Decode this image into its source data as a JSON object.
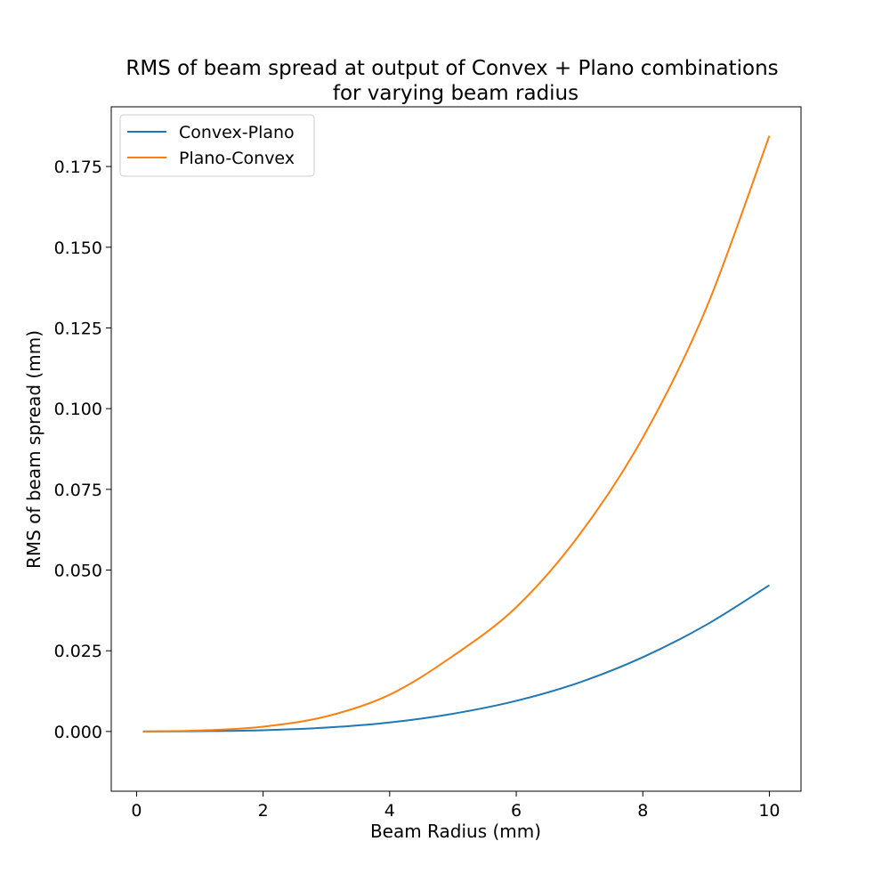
{
  "chart_data": {
    "type": "line",
    "title": "RMS of beam spread at output of Convex + Plano combinations",
    "subtitle": "for varying beam radius",
    "xlabel": "Beam Radius (mm)",
    "ylabel": "RMS of beam spread (mm)",
    "xlim": [
      -0.4,
      10.5
    ],
    "ylim": [
      -0.0185,
      0.1935
    ],
    "xticks": [
      0,
      2,
      4,
      6,
      8,
      10
    ],
    "xtick_labels": [
      "0",
      "2",
      "4",
      "6",
      "8",
      "10"
    ],
    "yticks": [
      0.0,
      0.025,
      0.05,
      0.075,
      0.1,
      0.125,
      0.15,
      0.175
    ],
    "ytick_labels": [
      "0.000",
      "0.025",
      "0.050",
      "0.075",
      "0.100",
      "0.125",
      "0.150",
      "0.175"
    ],
    "grid": false,
    "legend_position": "top-left",
    "series": [
      {
        "name": "Convex-Plano",
        "color": "#1f77b4",
        "x": [
          0.1,
          1,
          2,
          3,
          4,
          5,
          6,
          7,
          8,
          9,
          10
        ],
        "y": [
          0.0,
          0.0001,
          0.0004,
          0.0012,
          0.0028,
          0.0055,
          0.0095,
          0.0152,
          0.023,
          0.033,
          0.0453
        ]
      },
      {
        "name": "Plano-Convex",
        "color": "#ff7f0e",
        "x": [
          0.1,
          1,
          2,
          3,
          4,
          5,
          6,
          7,
          8,
          9,
          10
        ],
        "y": [
          0.0,
          0.0003,
          0.0015,
          0.0047,
          0.0114,
          0.0234,
          0.0385,
          0.061,
          0.091,
          0.131,
          0.1845
        ]
      }
    ]
  }
}
